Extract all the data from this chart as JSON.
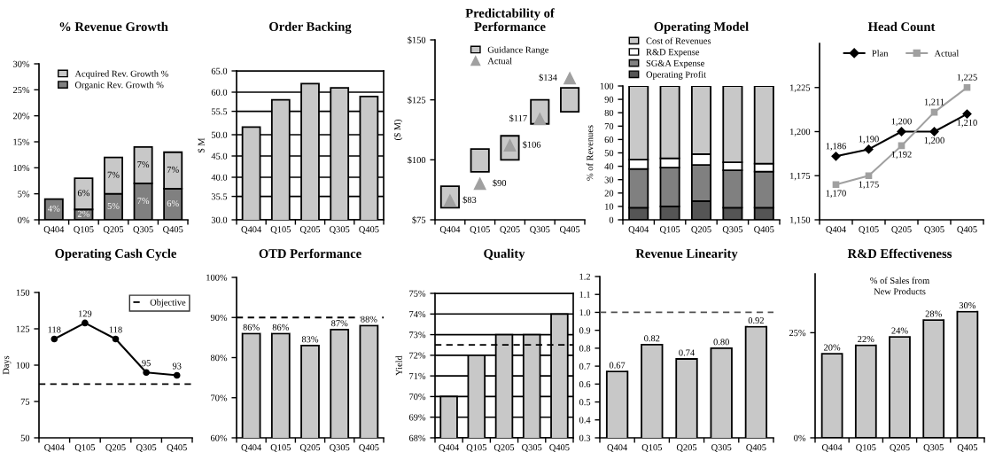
{
  "chart_data": [
    {
      "type": "bar",
      "title": "% Revenue Growth",
      "categories": [
        "Q404",
        "Q105",
        "Q205",
        "Q305",
        "Q405"
      ],
      "stacked": true,
      "legend": "top",
      "ylim": [
        0,
        30
      ],
      "yticks": [
        {
          "value": 0,
          "label": "0%"
        },
        {
          "value": 5,
          "label": "5%"
        },
        {
          "value": 10,
          "label": "10%"
        },
        {
          "value": 15,
          "label": "15%"
        },
        {
          "value": 20,
          "label": "20%"
        },
        {
          "value": 25,
          "label": "25%"
        },
        {
          "value": 30,
          "label": "30%"
        }
      ],
      "series": [
        {
          "name": "Organic Rev. Growth %",
          "color": "#808080",
          "values": [
            4,
            2,
            5,
            7,
            6
          ],
          "value_labels": [
            "4%",
            "2%",
            "5%",
            "7%",
            "6%"
          ]
        },
        {
          "name": "Acquired Rev. Growth %",
          "color": "#c8c8c8",
          "values": [
            null,
            6,
            7,
            7,
            7
          ],
          "value_labels": [
            null,
            "6%",
            "7%",
            "7%",
            "7%"
          ]
        }
      ]
    },
    {
      "type": "bar",
      "title": "Order Backing",
      "categories": [
        "Q404",
        "Q105",
        "Q205",
        "Q305",
        "Q405"
      ],
      "ylabel": "$ M",
      "grid": "y",
      "color": "#c8c8c8",
      "values": [
        51.8,
        58.2,
        62,
        61,
        59
      ],
      "ylim": [
        30,
        65
      ],
      "yticks": [
        {
          "value": 30,
          "label": "30.0"
        },
        35.5,
        {
          "value": 40,
          "label": "40.0"
        },
        {
          "value": 45,
          "label": "45.0"
        },
        {
          "value": 50,
          "label": "50.0"
        },
        55.5,
        {
          "value": 60,
          "label": "60.0"
        },
        {
          "value": 65,
          "label": "65.0"
        }
      ]
    },
    {
      "type": "bar",
      "title": "Predictability of\nPerformance",
      "categories": [
        "Q404",
        "Q105",
        "Q205",
        "Q305",
        "Q405"
      ],
      "ylabel": "($ M)",
      "legend": "top",
      "ylim": [
        75,
        150
      ],
      "yticks": [
        {
          "value": 75,
          "label": "$75"
        },
        {
          "value": 100,
          "label": "$100"
        },
        {
          "value": 125,
          "label": "$125"
        },
        {
          "value": 150,
          "label": "$150"
        }
      ],
      "series": [
        {
          "name": "Guidance Range",
          "color": "#c8c8c8",
          "base": [
            80,
            95,
            100,
            115,
            120
          ],
          "values": [
            9,
            9.5,
            10,
            10,
            10
          ]
        },
        {
          "name": "Actual",
          "type": "scatter",
          "marker": "triangle",
          "color": "#a0a0a0",
          "values": [
            83,
            90,
            106,
            117,
            134
          ],
          "value_labels": [
            "$83",
            "$90",
            "$106",
            "$117",
            "$134"
          ]
        }
      ]
    },
    {
      "type": "bar",
      "title": "Operating Model",
      "categories": [
        "Q404",
        "Q105",
        "Q205",
        "Q305",
        "Q405"
      ],
      "ylabel": "% of Revenues",
      "stacked": true,
      "legend": "top left",
      "ylim": [
        0,
        100
      ],
      "yticks": [
        0,
        10,
        20,
        30,
        40,
        50,
        60,
        70,
        80,
        90,
        100
      ],
      "series": [
        {
          "name": "Operating Profit",
          "color": "#555555",
          "values": [
            9,
            10,
            14,
            9,
            9
          ]
        },
        {
          "name": "SG&A Expense",
          "color": "#808080",
          "values": [
            29,
            29,
            27,
            28,
            27
          ]
        },
        {
          "name": "R&D Expense",
          "color": "#ffffff",
          "values": [
            7,
            7,
            8,
            6,
            6
          ]
        },
        {
          "name": "Cost of Revenues",
          "color": "#c8c8c8",
          "values": [
            55,
            54,
            51,
            57,
            58
          ]
        }
      ]
    },
    {
      "type": "line",
      "title": "Head Count",
      "categories": [
        "Q404",
        "Q105",
        "Q205",
        "Q305",
        "Q405"
      ],
      "legend": "top",
      "ylim": [
        1150,
        1250
      ],
      "yticks": [
        {
          "value": 1150,
          "label": "1,150"
        },
        {
          "value": 1175,
          "label": "1,175"
        },
        {
          "value": 1200,
          "label": "1,200"
        },
        {
          "value": 1225,
          "label": "1,225"
        }
      ],
      "series": [
        {
          "name": "Plan",
          "color": "#000000",
          "marker": "diamond",
          "values": [
            1186,
            1190,
            1200,
            1200,
            1210
          ],
          "value_labels": [
            "1,186",
            "1,190",
            "1,200",
            "1,200",
            "1,210"
          ]
        },
        {
          "name": "Actual",
          "color": "#a0a0a0",
          "marker": "square",
          "values": [
            1170,
            1175,
            1192,
            1211,
            1225
          ],
          "value_labels": [
            "1,170",
            "1,175",
            "1,192",
            "1,211",
            "1,225"
          ]
        }
      ]
    },
    {
      "type": "line",
      "title": "Operating Cash Cycle",
      "categories": [
        "Q404",
        "Q105",
        "Q205",
        "Q305",
        "Q405"
      ],
      "ylabel": "Days",
      "legend": "top right",
      "marker": "circle",
      "color": "#000000",
      "values": [
        118,
        129,
        118,
        95,
        93
      ],
      "data_labels": true,
      "ylim": [
        50,
        150
      ],
      "yticks": [
        50,
        75,
        100,
        125,
        150
      ],
      "ref_lines": [
        {
          "axis": "y",
          "value": 87,
          "label": "Objective",
          "line_style": "dashed",
          "color": "#000000"
        }
      ]
    },
    {
      "type": "bar",
      "title": "OTD Performance",
      "categories": [
        "Q404",
        "Q105",
        "Q205",
        "Q305",
        "Q405"
      ],
      "color": "#c8c8c8",
      "values": [
        86,
        86,
        83,
        87,
        88
      ],
      "value_labels": [
        "86%",
        "86%",
        "83%",
        "87%",
        "88%"
      ],
      "ylim": [
        60,
        100
      ],
      "yticks": [
        {
          "value": 60,
          "label": "60%"
        },
        {
          "value": 70,
          "label": "70%"
        },
        {
          "value": 80,
          "label": "80%"
        },
        {
          "value": 90,
          "label": "90%"
        },
        {
          "value": 100,
          "label": "100%"
        }
      ],
      "ref_lines": [
        {
          "axis": "y",
          "value": 90,
          "line_style": "dashed",
          "color": "#000000"
        }
      ]
    },
    {
      "type": "bar",
      "title": "Quality",
      "categories": [
        "Q404",
        "Q105",
        "Q205",
        "Q305",
        "Q405"
      ],
      "ylabel": "Yield",
      "grid": "y",
      "color": "#c8c8c8",
      "values": [
        70,
        72,
        73,
        73,
        74
      ],
      "ylim": [
        68,
        75
      ],
      "yticks": [
        {
          "value": 68,
          "label": "68%"
        },
        {
          "value": 69,
          "label": "69%"
        },
        {
          "value": 70,
          "label": "70%"
        },
        {
          "value": 71,
          "label": "71%"
        },
        {
          "value": 72,
          "label": "72%"
        },
        {
          "value": 73,
          "label": "73%"
        },
        {
          "value": 74,
          "label": "74%"
        },
        {
          "value": 75,
          "label": "75%"
        }
      ],
      "ref_lines": [
        {
          "axis": "y",
          "value": 72.5,
          "line_style": "dashed",
          "color": "#000000"
        }
      ]
    },
    {
      "type": "bar",
      "title": "Revenue Linearity",
      "categories": [
        "Q404",
        "Q105",
        "Q205",
        "Q305",
        "Q405"
      ],
      "color": "#c8c8c8",
      "values": [
        0.67,
        0.82,
        0.74,
        0.8,
        0.92
      ],
      "value_labels": [
        "0.67",
        "0.82",
        "0.74",
        "0.80",
        "0.92"
      ],
      "ylim": [
        0.3,
        1.2
      ],
      "yticks": [
        {
          "value": 0.3,
          "label": "0.3"
        },
        {
          "value": 0.4,
          "label": "0.4"
        },
        {
          "value": 0.5,
          "label": "0.5"
        },
        {
          "value": 0.6,
          "label": "0.6"
        },
        {
          "value": 0.7,
          "label": "0.7"
        },
        {
          "value": 0.8,
          "label": "0.8"
        },
        {
          "value": 0.9,
          "label": "0.9"
        },
        {
          "value": 1.0,
          "label": "1.0"
        },
        {
          "value": 1.1,
          "label": "1.1"
        },
        {
          "value": 1.2,
          "label": "1.2"
        }
      ],
      "ref_lines": [
        {
          "axis": "y",
          "value": 1.0,
          "line_style": "dashed",
          "color": "#505050"
        }
      ]
    },
    {
      "type": "bar",
      "title": "R&D Effectiveness",
      "subtitle": "% of Sales from\nNew Products",
      "categories": [
        "Q404",
        "Q105",
        "Q205",
        "Q305",
        "Q405"
      ],
      "color": "#c8c8c8",
      "values": [
        20,
        22,
        24,
        28,
        30
      ],
      "value_labels": [
        "20%",
        "22%",
        "24%",
        "28%",
        "30%"
      ],
      "ylim": [
        0,
        39
      ],
      "yticks": [
        {
          "value": 0,
          "label": "0%"
        },
        {
          "value": 25,
          "label": "25%"
        }
      ]
    }
  ]
}
